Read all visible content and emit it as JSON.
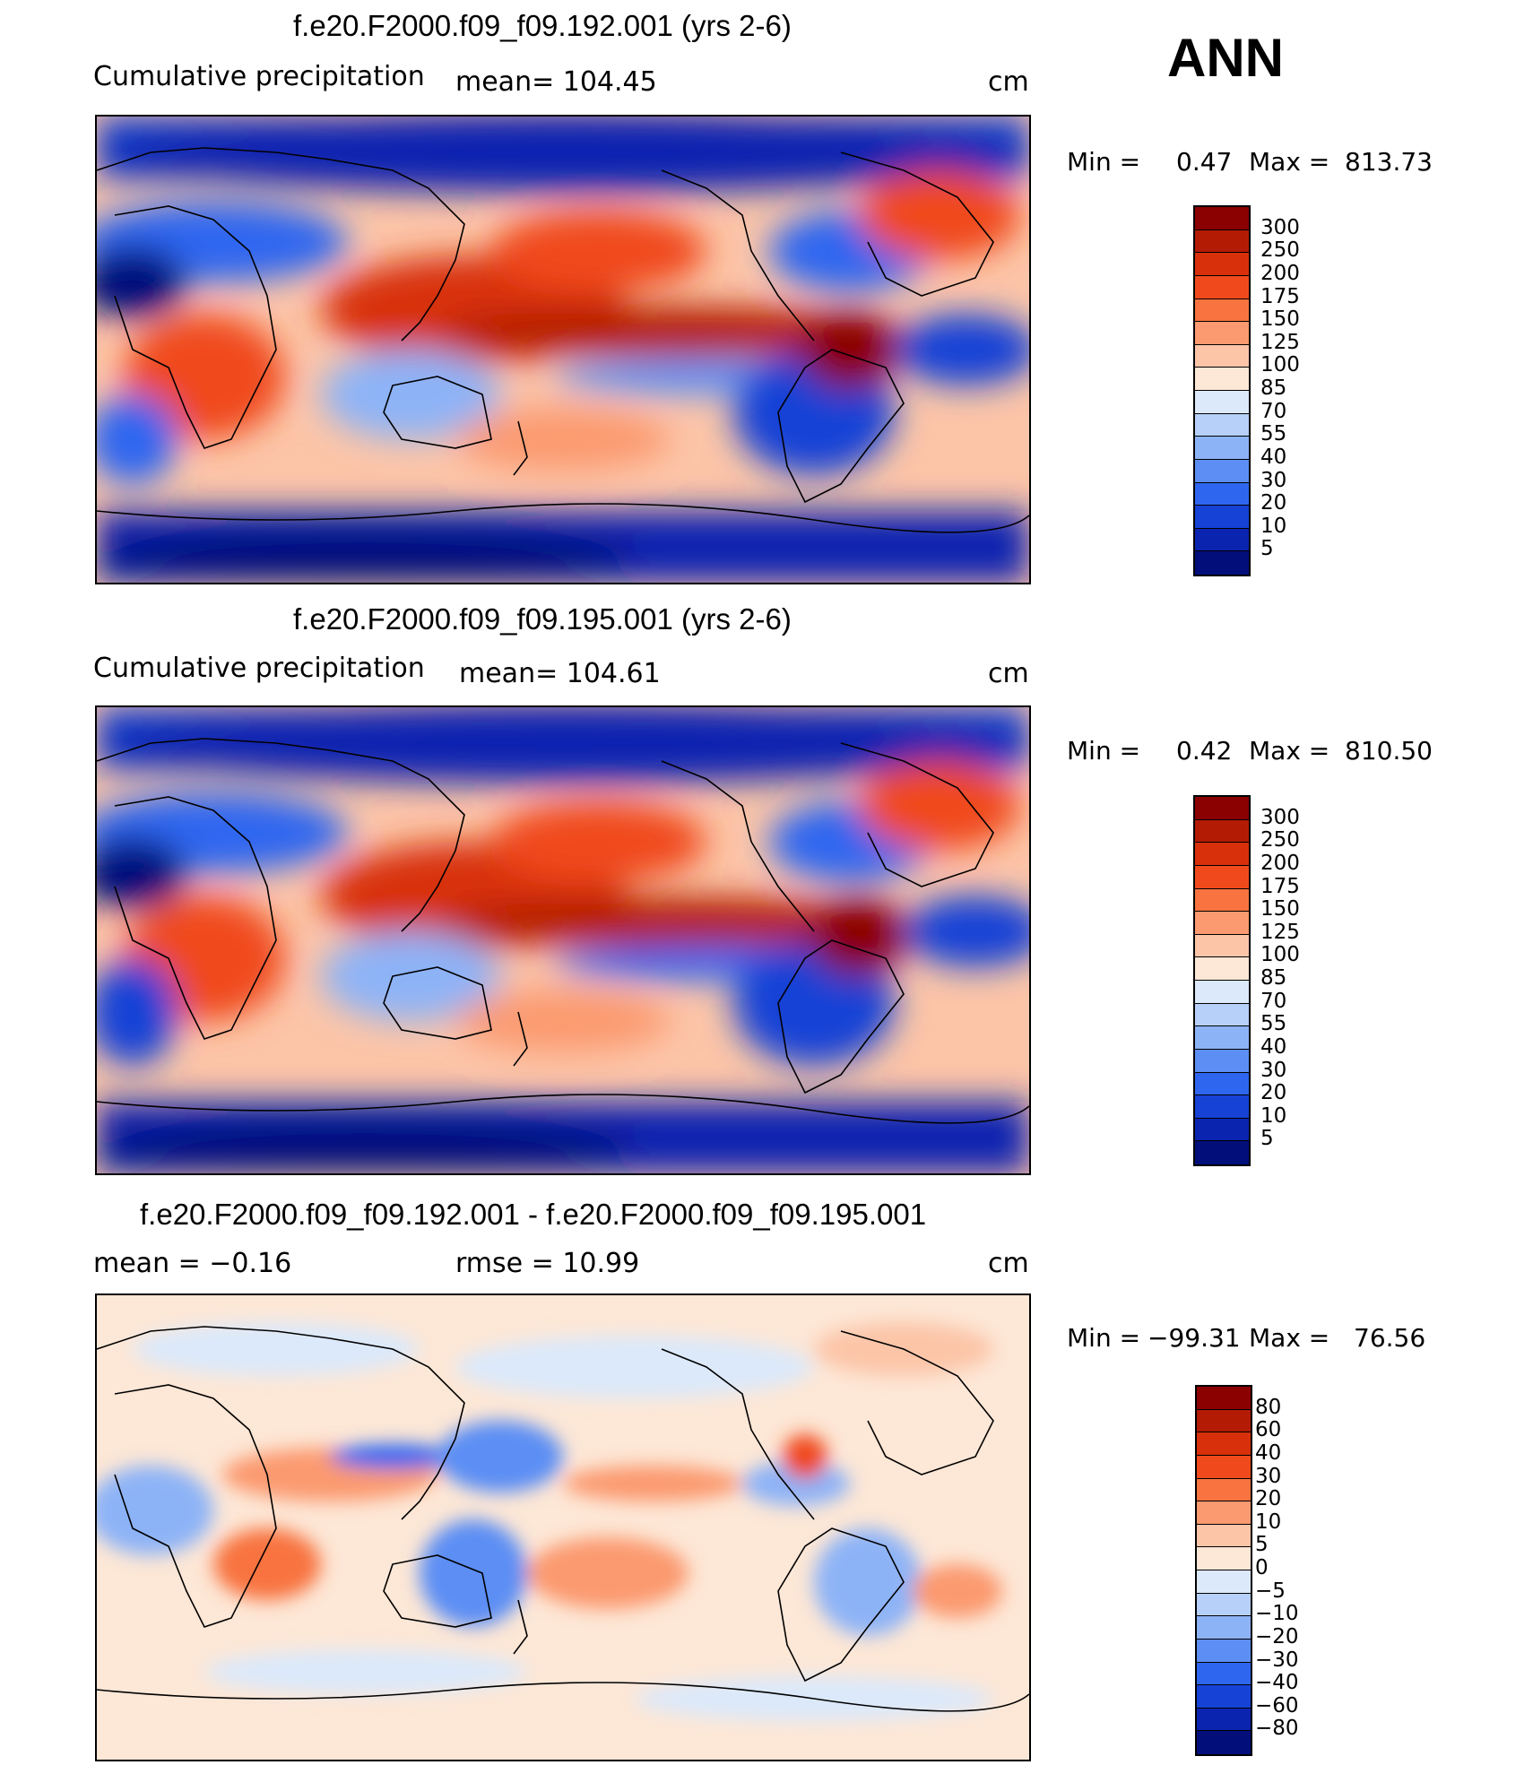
{
  "season": "ANN",
  "units": "cm",
  "panels": [
    {
      "title": "f.e20.F2000.f09_f09.192.001 (yrs 2-6)",
      "left_label": "Cumulative precipitation",
      "mean_text": "mean= 104.45",
      "units": "cm",
      "min_label": "Min =",
      "min_value": "0.47",
      "max_label": "Max =",
      "max_value": "813.73"
    },
    {
      "title": "f.e20.F2000.f09_f09.195.001 (yrs 2-6)",
      "left_label": "Cumulative precipitation",
      "mean_text": "mean= 104.61",
      "units": "cm",
      "min_label": "Min =",
      "min_value": "0.42",
      "max_label": "Max =",
      "max_value": "810.50"
    },
    {
      "title": "f.e20.F2000.f09_f09.192.001 - f.e20.F2000.f09_f09.195.001",
      "left_label": "mean =  −0.16",
      "mean_text": "rmse =   10.99",
      "units": "cm",
      "min_label": "Min =",
      "min_value": "−99.31",
      "max_label": "Max =",
      "max_value": "76.56"
    }
  ],
  "colorbars": {
    "precip": {
      "labels": [
        "300",
        "250",
        "200",
        "175",
        "150",
        "125",
        "100",
        "85",
        "70",
        "55",
        "40",
        "30",
        "20",
        "10",
        "5"
      ],
      "colors": [
        "#8b0000",
        "#b31b05",
        "#d8300a",
        "#f04a1c",
        "#f8733f",
        "#fb9a70",
        "#fcc5a8",
        "#fde7d6",
        "#dbe9fb",
        "#b6d0fa",
        "#8db3f7",
        "#5c8ef4",
        "#2f66f0",
        "#1642d6",
        "#0a24b0",
        "#020f7a"
      ]
    },
    "diff": {
      "labels": [
        "80",
        "60",
        "40",
        "30",
        "20",
        "10",
        "5",
        "0",
        "−5",
        "−10",
        "−20",
        "−30",
        "−40",
        "−60",
        "−80"
      ],
      "colors": [
        "#8b0000",
        "#b31b05",
        "#d8300a",
        "#f04a1c",
        "#f8733f",
        "#fb9a70",
        "#fcc5a8",
        "#fde7d6",
        "#dbe9fb",
        "#b6d0fa",
        "#8db3f7",
        "#5c8ef4",
        "#2f66f0",
        "#1642d6",
        "#0a24b0",
        "#020f7a"
      ]
    }
  }
}
